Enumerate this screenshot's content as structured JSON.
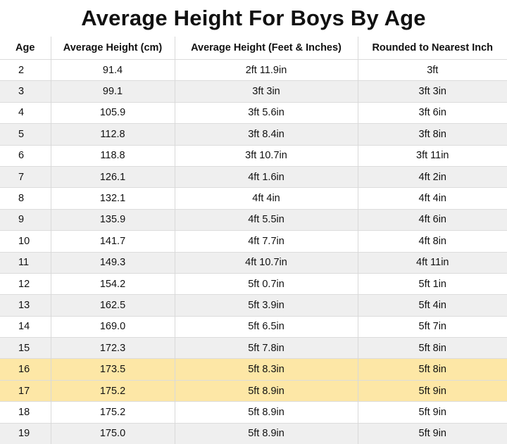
{
  "title": "Average Height For Boys By Age",
  "columns": [
    "Age",
    "Average Height (cm)",
    "Average Height (Feet & Inches)",
    "Rounded to Nearest Inch"
  ],
  "rows": [
    {
      "age": "2",
      "cm": "91.4",
      "ft_in": "2ft 11.9in",
      "rounded": "3ft",
      "highlight": false
    },
    {
      "age": "3",
      "cm": "99.1",
      "ft_in": "3ft 3in",
      "rounded": "3ft 3in",
      "highlight": false
    },
    {
      "age": "4",
      "cm": "105.9",
      "ft_in": "3ft 5.6in",
      "rounded": "3ft 6in",
      "highlight": false
    },
    {
      "age": "5",
      "cm": "112.8",
      "ft_in": "3ft 8.4in",
      "rounded": "3ft 8in",
      "highlight": false
    },
    {
      "age": "6",
      "cm": "118.8",
      "ft_in": "3ft 10.7in",
      "rounded": "3ft 11in",
      "highlight": false
    },
    {
      "age": "7",
      "cm": "126.1",
      "ft_in": "4ft 1.6in",
      "rounded": "4ft 2in",
      "highlight": false
    },
    {
      "age": "8",
      "cm": "132.1",
      "ft_in": "4ft 4in",
      "rounded": "4ft 4in",
      "highlight": false
    },
    {
      "age": "9",
      "cm": "135.9",
      "ft_in": "4ft 5.5in",
      "rounded": "4ft 6in",
      "highlight": false
    },
    {
      "age": "10",
      "cm": "141.7",
      "ft_in": "4ft 7.7in",
      "rounded": "4ft 8in",
      "highlight": false
    },
    {
      "age": "11",
      "cm": "149.3",
      "ft_in": "4ft 10.7in",
      "rounded": "4ft 11in",
      "highlight": false
    },
    {
      "age": "12",
      "cm": "154.2",
      "ft_in": "5ft 0.7in",
      "rounded": "5ft 1in",
      "highlight": false
    },
    {
      "age": "13",
      "cm": "162.5",
      "ft_in": "5ft 3.9in",
      "rounded": "5ft 4in",
      "highlight": false
    },
    {
      "age": "14",
      "cm": "169.0",
      "ft_in": "5ft 6.5in",
      "rounded": "5ft 7in",
      "highlight": false
    },
    {
      "age": "15",
      "cm": "172.3",
      "ft_in": "5ft 7.8in",
      "rounded": "5ft 8in",
      "highlight": false
    },
    {
      "age": "16",
      "cm": "173.5",
      "ft_in": "5ft 8.3in",
      "rounded": "5ft 8in",
      "highlight": true
    },
    {
      "age": "17",
      "cm": "175.2",
      "ft_in": "5ft 8.9in",
      "rounded": "5ft 9in",
      "highlight": true
    },
    {
      "age": "18",
      "cm": "175.2",
      "ft_in": "5ft 8.9in",
      "rounded": "5ft 9in",
      "highlight": false
    },
    {
      "age": "19",
      "cm": "175.0",
      "ft_in": "5ft 8.9in",
      "rounded": "5ft 9in",
      "highlight": false
    }
  ],
  "colors": {
    "highlight_row": "#fde7a6",
    "alt_row": "#efefef"
  }
}
